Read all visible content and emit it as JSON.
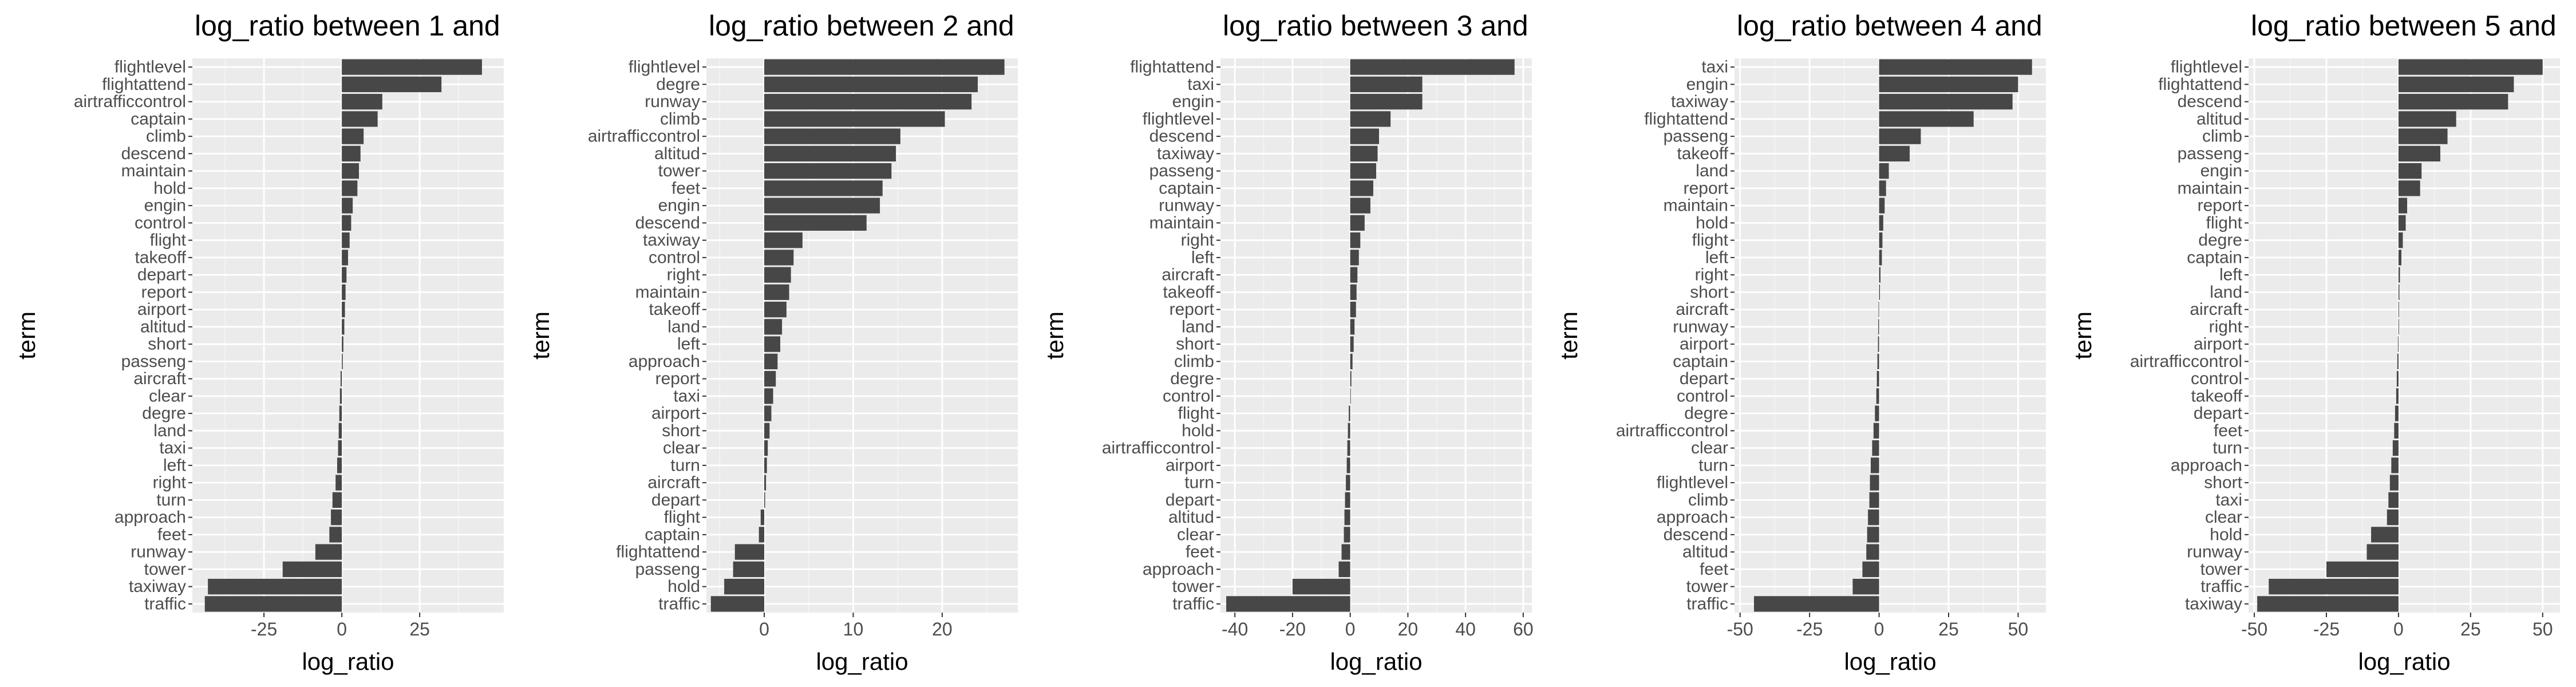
{
  "chart_data": [
    {
      "type": "bar",
      "orientation": "horizontal",
      "title": "log_ratio between 1 and",
      "xlabel": "log_ratio",
      "ylabel": "term",
      "xlim": [
        -48,
        52
      ],
      "xticks": [
        -25,
        0,
        25
      ],
      "terms": [
        "flightlevel",
        "flightattend",
        "airtrafficcontrol",
        "captain",
        "climb",
        "descend",
        "maintain",
        "hold",
        "engin",
        "control",
        "flight",
        "takeoff",
        "depart",
        "report",
        "airport",
        "altitud",
        "short",
        "passeng",
        "aircraft",
        "clear",
        "degre",
        "land",
        "taxi",
        "left",
        "right",
        "turn",
        "approach",
        "feet",
        "runway",
        "tower",
        "taxiway",
        "traffic"
      ],
      "values": [
        45,
        32,
        13,
        11.5,
        7,
        6,
        5.5,
        5,
        3.5,
        3,
        2.5,
        2,
        1.5,
        1.2,
        1,
        0.8,
        0.5,
        0.3,
        -0.4,
        -0.6,
        -0.8,
        -1,
        -1.2,
        -1.5,
        -2,
        -3,
        -3.5,
        -4,
        -8.5,
        -19,
        -43,
        -44
      ]
    },
    {
      "type": "bar",
      "orientation": "horizontal",
      "title": "log_ratio between 2 and",
      "xlabel": "log_ratio",
      "ylabel": "term",
      "xlim": [
        -6.5,
        28.5
      ],
      "xticks": [
        0,
        10,
        20
      ],
      "terms": [
        "flightlevel",
        "degre",
        "runway",
        "climb",
        "airtrafficcontrol",
        "altitud",
        "tower",
        "feet",
        "engin",
        "descend",
        "taxiway",
        "control",
        "right",
        "maintain",
        "takeoff",
        "land",
        "left",
        "approach",
        "report",
        "taxi",
        "airport",
        "short",
        "clear",
        "turn",
        "aircraft",
        "depart",
        "flight",
        "captain",
        "flightattend",
        "passeng",
        "hold",
        "traffic"
      ],
      "values": [
        27,
        24,
        23.3,
        20.3,
        15.3,
        14.8,
        14.3,
        13.3,
        13,
        11.5,
        4.3,
        3.3,
        3,
        2.8,
        2.5,
        2,
        1.8,
        1.5,
        1.3,
        1,
        0.8,
        0.6,
        0.4,
        0.3,
        0.2,
        0.1,
        -0.4,
        -0.6,
        -3.3,
        -3.5,
        -4.5,
        -6
      ]
    },
    {
      "type": "bar",
      "orientation": "horizontal",
      "title": "log_ratio between 3 and",
      "xlabel": "log_ratio",
      "ylabel": "term",
      "xlim": [
        -45,
        63
      ],
      "xticks": [
        -40,
        -20,
        0,
        20,
        40,
        60
      ],
      "terms": [
        "flightattend",
        "taxi",
        "engin",
        "flightlevel",
        "descend",
        "taxiway",
        "passeng",
        "captain",
        "runway",
        "maintain",
        "right",
        "left",
        "aircraft",
        "takeoff",
        "report",
        "land",
        "short",
        "climb",
        "degre",
        "control",
        "flight",
        "hold",
        "airtrafficcontrol",
        "airport",
        "turn",
        "depart",
        "altitud",
        "clear",
        "feet",
        "approach",
        "tower",
        "traffic"
      ],
      "values": [
        57,
        25,
        25,
        14,
        10,
        9.5,
        9,
        8,
        7,
        5,
        3.5,
        3,
        2.5,
        2.2,
        2,
        1.5,
        1.2,
        0.8,
        0.4,
        0.2,
        -0.5,
        -0.8,
        -1,
        -1.2,
        -1.5,
        -1.8,
        -2,
        -2.2,
        -3,
        -4,
        -20,
        -43
      ]
    },
    {
      "type": "bar",
      "orientation": "horizontal",
      "title": "log_ratio between 4 and",
      "xlabel": "log_ratio",
      "ylabel": "term",
      "xlim": [
        -52,
        60
      ],
      "xticks": [
        -50,
        -25,
        0,
        25,
        50
      ],
      "terms": [
        "taxi",
        "engin",
        "taxiway",
        "flightattend",
        "passeng",
        "takeoff",
        "land",
        "report",
        "maintain",
        "hold",
        "flight",
        "left",
        "right",
        "short",
        "aircraft",
        "runway",
        "airport",
        "captain",
        "depart",
        "control",
        "degre",
        "airtrafficcontrol",
        "clear",
        "turn",
        "flightlevel",
        "climb",
        "approach",
        "descend",
        "altitud",
        "feet",
        "tower",
        "traffic"
      ],
      "values": [
        55,
        50,
        48,
        34,
        15,
        11,
        3.5,
        2.5,
        2,
        1.5,
        1.2,
        1,
        0.5,
        0.3,
        -0.2,
        -0.3,
        -0.4,
        -0.6,
        -0.8,
        -1,
        -1.5,
        -2,
        -2.5,
        -3,
        -3.3,
        -3.5,
        -4,
        -4.3,
        -4.6,
        -6,
        -9.5,
        -45
      ]
    },
    {
      "type": "bar",
      "orientation": "horizontal",
      "title": "log_ratio between 5 and",
      "xlabel": "log_ratio",
      "ylabel": "term",
      "xlim": [
        -52,
        56
      ],
      "xticks": [
        -50,
        -25,
        0,
        25,
        50
      ],
      "terms": [
        "flightlevel",
        "flightattend",
        "descend",
        "altitud",
        "climb",
        "passeng",
        "engin",
        "maintain",
        "report",
        "flight",
        "degre",
        "captain",
        "left",
        "land",
        "aircraft",
        "right",
        "airport",
        "airtrafficcontrol",
        "control",
        "takeoff",
        "depart",
        "feet",
        "turn",
        "approach",
        "short",
        "taxi",
        "clear",
        "hold",
        "runway",
        "tower",
        "traffic",
        "taxiway"
      ],
      "values": [
        50,
        40,
        38,
        20,
        17,
        14.5,
        8,
        7.5,
        3,
        2.5,
        1.5,
        1,
        0.5,
        0.3,
        0.2,
        0.1,
        -0.2,
        -0.4,
        -0.6,
        -0.8,
        -1.2,
        -1.5,
        -2,
        -2.5,
        -3,
        -3.5,
        -4,
        -9.5,
        -11,
        -25,
        -45,
        -49
      ]
    }
  ]
}
